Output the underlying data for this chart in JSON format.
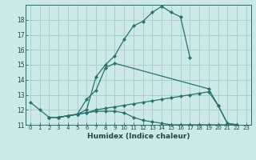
{
  "xlabel": "Humidex (Indice chaleur)",
  "bg_color": "#cce8e8",
  "grid_color": "#aacfcf",
  "line_color": "#2a7070",
  "xlim": [
    -0.5,
    23.5
  ],
  "ylim": [
    11,
    19
  ],
  "yticks": [
    11,
    12,
    13,
    14,
    15,
    16,
    17,
    18
  ],
  "xticks": [
    0,
    1,
    2,
    3,
    4,
    5,
    6,
    7,
    8,
    9,
    10,
    11,
    12,
    13,
    14,
    15,
    16,
    17,
    18,
    19,
    20,
    21,
    22,
    23
  ],
  "lines": [
    {
      "x": [
        0,
        1,
        2,
        3,
        4,
        5,
        6,
        7,
        8,
        9,
        10,
        11,
        12,
        13,
        14,
        15,
        16,
        17
      ],
      "y": [
        12.5,
        12.0,
        11.5,
        11.5,
        11.6,
        11.7,
        12.0,
        14.2,
        15.0,
        15.6,
        16.7,
        17.6,
        17.9,
        18.5,
        18.9,
        18.5,
        18.2,
        15.5
      ]
    },
    {
      "x": [
        2,
        3,
        4,
        5,
        6,
        7,
        8,
        9,
        19,
        20,
        21,
        22,
        23
      ],
      "y": [
        11.5,
        11.5,
        11.6,
        11.7,
        12.7,
        13.3,
        14.8,
        15.1,
        13.4,
        12.3,
        11.1,
        11.0,
        10.7
      ]
    },
    {
      "x": [
        2,
        3,
        4,
        5,
        6,
        7,
        8,
        9,
        10,
        11,
        12,
        13,
        14,
        15,
        16,
        17,
        18,
        19,
        20,
        21,
        22,
        23
      ],
      "y": [
        11.5,
        11.5,
        11.6,
        11.7,
        11.8,
        12.0,
        12.1,
        12.2,
        12.3,
        12.4,
        12.5,
        12.6,
        12.7,
        12.8,
        12.9,
        13.0,
        13.1,
        13.2,
        12.3,
        11.1,
        11.0,
        10.7
      ]
    },
    {
      "x": [
        2,
        3,
        4,
        5,
        6,
        7,
        8,
        9,
        10,
        11,
        12,
        13,
        14,
        15,
        16,
        17,
        18,
        19,
        20,
        21,
        22,
        23
      ],
      "y": [
        11.5,
        11.5,
        11.6,
        11.7,
        11.8,
        11.9,
        11.9,
        11.9,
        11.8,
        11.5,
        11.3,
        11.2,
        11.1,
        11.0,
        11.0,
        11.0,
        11.0,
        11.0,
        11.0,
        11.0,
        11.0,
        10.7
      ]
    }
  ]
}
